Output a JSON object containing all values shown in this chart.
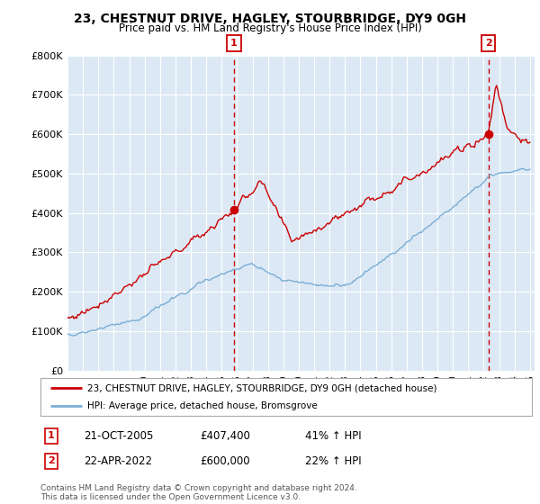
{
  "title1": "23, CHESTNUT DRIVE, HAGLEY, STOURBRIDGE, DY9 0GH",
  "title2": "Price paid vs. HM Land Registry's House Price Index (HPI)",
  "background_color": "#dce9f5",
  "red_line_color": "#cc0000",
  "blue_line_color": "#7aadd4",
  "transaction1_year": 2005.8,
  "transaction1_price": 407400,
  "transaction2_year": 2022.3,
  "transaction2_price": 600000,
  "legend_line1": "23, CHESTNUT DRIVE, HAGLEY, STOURBRIDGE, DY9 0GH (detached house)",
  "legend_line2": "HPI: Average price, detached house, Bromsgrove",
  "annotation1_date": "21-OCT-2005",
  "annotation1_price": "£407,400",
  "annotation1_hpi": "41% ↑ HPI",
  "annotation2_date": "22-APR-2022",
  "annotation2_price": "£600,000",
  "annotation2_hpi": "22% ↑ HPI",
  "footer": "Contains HM Land Registry data © Crown copyright and database right 2024.\nThis data is licensed under the Open Government Licence v3.0.",
  "ylim": [
    0,
    800000
  ],
  "xlim_min": 1995,
  "xlim_max": 2025
}
